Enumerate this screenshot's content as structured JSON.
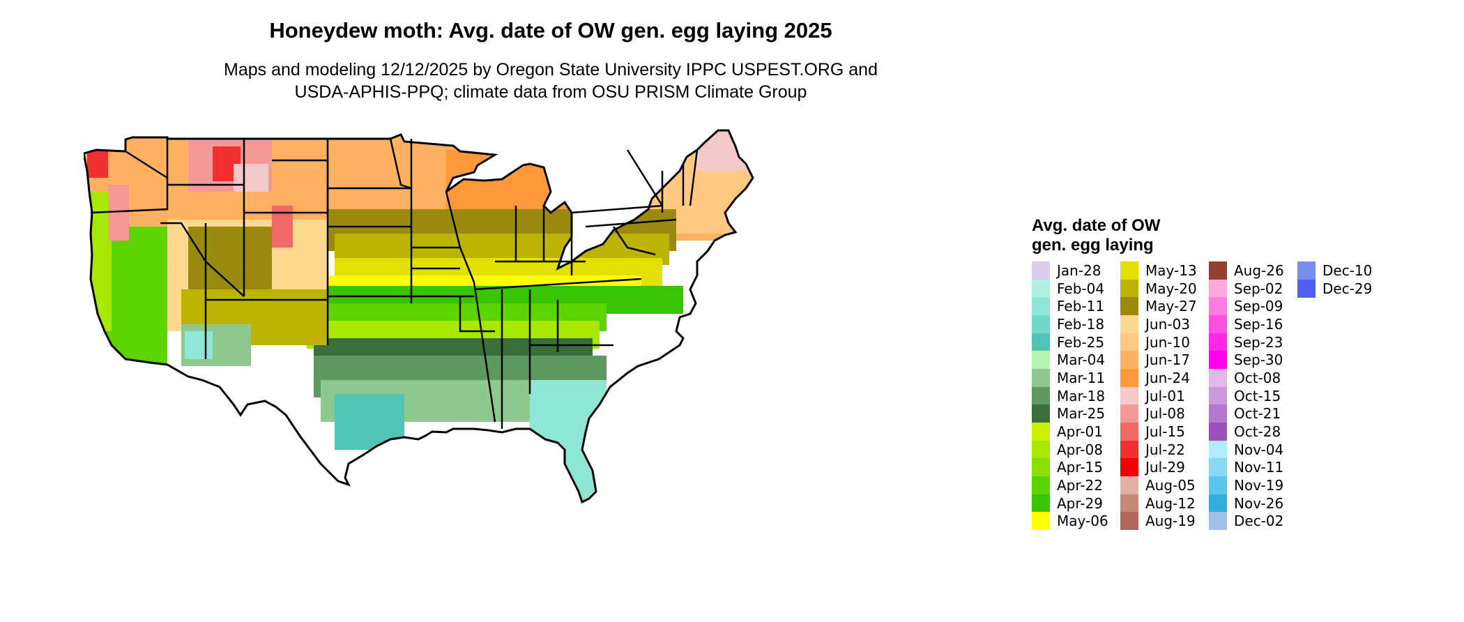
{
  "title": "Honeydew moth: Avg. date of OW gen. egg laying 2025",
  "subtitle_line1": "Maps and modeling 12/12/2025 by Oregon State University IPPC USPEST.ORG and",
  "subtitle_line2": "USDA-APHIS-PPQ; climate data from OSU PRISM Climate Group",
  "legend": {
    "title_line1": "Avg. date of OW",
    "title_line2": "gen. egg laying",
    "columns": [
      [
        {
          "label": "Jan-28",
          "color": "#d8cce8"
        },
        {
          "label": "Feb-04",
          "color": "#aef0e0"
        },
        {
          "label": "Feb-11",
          "color": "#8ee6d4"
        },
        {
          "label": "Feb-18",
          "color": "#6ed8c6"
        },
        {
          "label": "Feb-25",
          "color": "#52c4b6"
        },
        {
          "label": "Mar-04",
          "color": "#b4f5b0"
        },
        {
          "label": "Mar-11",
          "color": "#8ec88e"
        },
        {
          "label": "Mar-18",
          "color": "#5e9a5e"
        },
        {
          "label": "Mar-25",
          "color": "#3a6e3a"
        },
        {
          "label": "Apr-01",
          "color": "#c8f000"
        },
        {
          "label": "Apr-08",
          "color": "#a8e800"
        },
        {
          "label": "Apr-15",
          "color": "#88e000"
        },
        {
          "label": "Apr-22",
          "color": "#5cd400"
        },
        {
          "label": "Apr-29",
          "color": "#38c400"
        },
        {
          "label": "May-06",
          "color": "#ffff00"
        }
      ],
      [
        {
          "label": "May-13",
          "color": "#e2e000"
        },
        {
          "label": "May-20",
          "color": "#bcb400"
        },
        {
          "label": "May-27",
          "color": "#9a8a10"
        },
        {
          "label": "Jun-03",
          "color": "#ffd890"
        },
        {
          "label": "Jun-10",
          "color": "#ffc880"
        },
        {
          "label": "Jun-17",
          "color": "#ffb060"
        },
        {
          "label": "Jun-24",
          "color": "#ff9838"
        },
        {
          "label": "Jul-01",
          "color": "#f4c8c8"
        },
        {
          "label": "Jul-08",
          "color": "#f49898"
        },
        {
          "label": "Jul-15",
          "color": "#f06868"
        },
        {
          "label": "Jul-22",
          "color": "#f03030"
        },
        {
          "label": "Jul-29",
          "color": "#f00000"
        },
        {
          "label": "Aug-05",
          "color": "#e0b0a8"
        },
        {
          "label": "Aug-12",
          "color": "#c88878"
        },
        {
          "label": "Aug-19",
          "color": "#b06858"
        }
      ],
      [
        {
          "label": "Aug-26",
          "color": "#964030"
        },
        {
          "label": "Sep-02",
          "color": "#ffa8e0"
        },
        {
          "label": "Sep-09",
          "color": "#ff7ce0"
        },
        {
          "label": "Sep-16",
          "color": "#ff50e0"
        },
        {
          "label": "Sep-23",
          "color": "#ff28e8"
        },
        {
          "label": "Sep-30",
          "color": "#ff00f0"
        },
        {
          "label": "Oct-08",
          "color": "#e0b8e8"
        },
        {
          "label": "Oct-15",
          "color": "#cc98dc"
        },
        {
          "label": "Oct-21",
          "color": "#b478d0"
        },
        {
          "label": "Oct-28",
          "color": "#9c50bc"
        },
        {
          "label": "Nov-04",
          "color": "#b0ecff"
        },
        {
          "label": "Nov-11",
          "color": "#88d8f4"
        },
        {
          "label": "Nov-19",
          "color": "#5cc4ea"
        },
        {
          "label": "Nov-26",
          "color": "#30aee0"
        },
        {
          "label": "Dec-02",
          "color": "#a0c0e8"
        }
      ],
      [
        {
          "label": "Dec-10",
          "color": "#7890ec"
        },
        {
          "label": "Dec-29",
          "color": "#5060f0"
        }
      ]
    ]
  },
  "map_colors": {
    "north_orange": "#ffb060",
    "deep_orange": "#ff9838",
    "light_orange": "#ffc880",
    "pale_orange": "#ffd890",
    "olive": "#9a8a10",
    "dark_yellow": "#bcb400",
    "yellow": "#e2e000",
    "bright_yellow": "#ffff00",
    "lime": "#a8e800",
    "green": "#5cd400",
    "bright_green": "#38c400",
    "dark_green": "#3a6e3a",
    "med_green": "#5e9a5e",
    "sage": "#8ec88e",
    "teal": "#52c4b6",
    "aqua": "#8ee6d4",
    "pink": "#f49898",
    "red": "#f03030",
    "blush": "#f4c8c8",
    "outline": "#000000"
  }
}
